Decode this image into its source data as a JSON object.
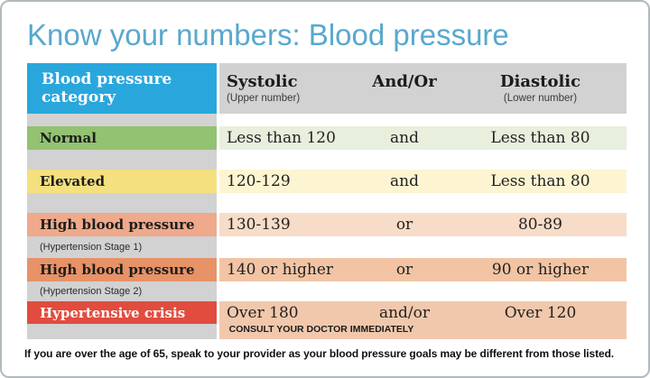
{
  "title": "Know your numbers: Blood pressure",
  "header": {
    "category": "Blood pressure category",
    "columns": [
      {
        "label": "Systolic",
        "sub": "(Upper number)"
      },
      {
        "label": "And/Or",
        "sub": ""
      },
      {
        "label": "Diastolic",
        "sub": "(Lower number)"
      }
    ]
  },
  "rows": [
    {
      "category": "Normal",
      "subtitle": "",
      "systolic": "Less than 120",
      "connector": "and",
      "diastolic": "Less than 80"
    },
    {
      "category": "Elevated",
      "subtitle": "",
      "systolic": "120-129",
      "connector": "and",
      "diastolic": "Less than 80"
    },
    {
      "category": "High blood pressure",
      "subtitle": "(Hypertension Stage 1)",
      "systolic": "130-139",
      "connector": "or",
      "diastolic": "80-89"
    },
    {
      "category": "High blood pressure",
      "subtitle": "(Hypertension Stage 2)",
      "systolic": "140 or higher",
      "connector": "or",
      "diastolic": "90 or higher"
    },
    {
      "category": "Hypertensive crisis",
      "subtitle": "",
      "systolic": "Over 180",
      "connector": "and/or",
      "diastolic": "Over 120"
    }
  ],
  "consult_note": "CONSULT YOUR DOCTOR IMMEDIATELY",
  "footer": "If you are over the age of 65, speak to your provider as your blood pressure goals may be different from those listed.",
  "colors": {
    "title": "#58a8cd",
    "header_category_bg": "#29a7dd",
    "header_category_text": "#ffffff",
    "header_values_bg": "#d2d2d2",
    "column_gap_bg": "#d2d2d2",
    "rows": [
      {
        "label_bg": "#92c272",
        "band_bg": "#e8efdd",
        "label_text": "#1d1d1b"
      },
      {
        "label_bg": "#f5e07f",
        "band_bg": "#fdf5d2",
        "label_text": "#1d1d1b"
      },
      {
        "label_bg": "#efa98b",
        "band_bg": "#f7dcc8",
        "label_text": "#1d1d1b"
      },
      {
        "label_bg": "#e79267",
        "band_bg": "#f2c4a4",
        "label_text": "#1d1d1b"
      },
      {
        "label_bg": "#e14c3e",
        "band_bg": "#f1c8ac",
        "label_text": "#ffffff"
      }
    ]
  },
  "chart_data": {
    "type": "table",
    "title": "Know your numbers: Blood pressure",
    "columns": [
      "Blood pressure category",
      "Systolic (Upper number)",
      "And/Or",
      "Diastolic (Lower number)"
    ],
    "rows": [
      [
        "Normal",
        "Less than 120",
        "and",
        "Less than 80"
      ],
      [
        "Elevated",
        "120-129",
        "and",
        "Less than 80"
      ],
      [
        "High blood pressure (Hypertension Stage 1)",
        "130-139",
        "or",
        "80-89"
      ],
      [
        "High blood pressure (Hypertension Stage 2)",
        "140 or higher",
        "or",
        "90 or higher"
      ],
      [
        "Hypertensive crisis",
        "Over 180",
        "and/or",
        "Over 120"
      ]
    ],
    "notes": [
      "CONSULT YOUR DOCTOR IMMEDIATELY",
      "If you are over the age of 65, speak to your provider as your blood pressure goals may be different from those listed."
    ]
  }
}
